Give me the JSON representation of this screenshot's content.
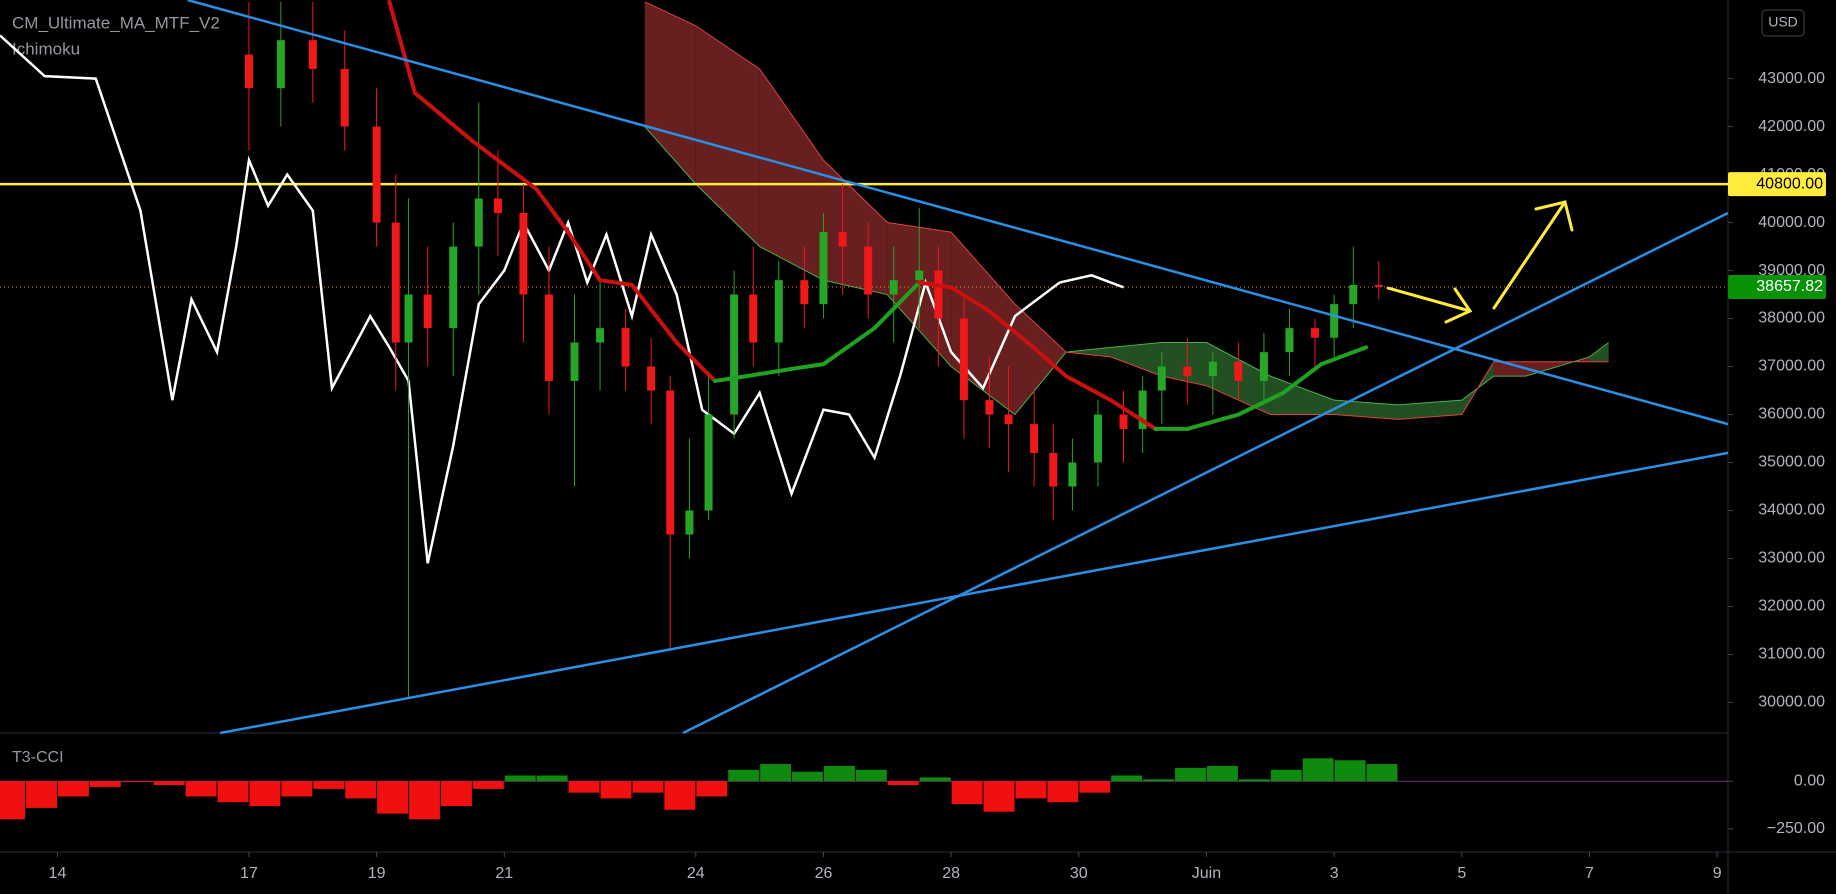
{
  "indicators": [
    "CM_Ultimate_MA_MTF_V2",
    "Ichimoku"
  ],
  "currency": "USD",
  "chart_data": [
    {
      "type": "candlestick",
      "up_color": "#26a526",
      "down_color": "#f01818",
      "x": [
        17.0,
        17.5,
        18.0,
        18.5,
        19.0,
        19.3,
        19.5,
        19.8,
        20.2,
        20.6,
        20.9,
        21.3,
        21.7,
        22.1,
        22.5,
        22.9,
        23.3,
        23.6,
        23.9,
        24.2,
        24.6,
        24.9,
        25.3,
        25.7,
        26.0,
        26.3,
        26.7,
        27.1,
        27.5,
        27.8,
        28.2,
        28.6,
        28.9,
        29.3,
        29.6,
        29.9,
        30.3,
        30.7,
        31.0,
        31.3,
        31.7,
        32.1,
        32.5,
        32.9,
        33.3,
        33.7,
        34.0,
        34.3,
        34.7
      ],
      "open": [
        43500,
        42800,
        43800,
        43200,
        42000,
        40000,
        37500,
        38500,
        37800,
        39500,
        40500,
        40200,
        38500,
        36700,
        37500,
        37800,
        37000,
        36500,
        33500,
        34000,
        36000,
        38500,
        37500,
        38800,
        38300,
        39800,
        39500,
        38500,
        38800,
        39000,
        38000,
        36300,
        36000,
        35800,
        35200,
        34500,
        35000,
        36000,
        35700,
        36500,
        37000,
        36800,
        37100,
        36700,
        37300,
        37800,
        37600,
        38300,
        38700
      ],
      "high": [
        44600,
        44600,
        44600,
        44000,
        42800,
        41000,
        40500,
        39500,
        40000,
        42500,
        41500,
        40800,
        39500,
        38500,
        38800,
        38200,
        37600,
        36800,
        35500,
        36800,
        39000,
        39500,
        39200,
        39500,
        40200,
        40800,
        40000,
        39500,
        40300,
        39500,
        38500,
        37200,
        37000,
        36500,
        35800,
        35500,
        36300,
        36500,
        36800,
        37300,
        37600,
        37300,
        37500,
        37700,
        38200,
        38000,
        38500,
        39500,
        39200
      ],
      "low": [
        41500,
        42000,
        42500,
        41500,
        39500,
        36500,
        30100,
        37000,
        36800,
        38500,
        39300,
        37500,
        36000,
        34500,
        36500,
        36500,
        35800,
        31100,
        33000,
        33800,
        35500,
        37000,
        36800,
        37800,
        38000,
        38500,
        38000,
        37500,
        37800,
        37000,
        35500,
        35300,
        34800,
        34500,
        33800,
        34000,
        34500,
        35000,
        35200,
        35800,
        36200,
        36000,
        36300,
        36300,
        36800,
        37000,
        37200,
        37800,
        38400
      ],
      "close": [
        42800,
        43800,
        43200,
        42000,
        40000,
        37500,
        38500,
        37800,
        39500,
        40500,
        40200,
        38500,
        36700,
        37500,
        37800,
        37000,
        36500,
        33500,
        34000,
        36000,
        38500,
        37500,
        38800,
        38300,
        39800,
        39500,
        38500,
        38800,
        39000,
        38000,
        36300,
        36000,
        35800,
        35200,
        34500,
        35000,
        36000,
        35700,
        36500,
        37000,
        36800,
        37100,
        36700,
        37300,
        37800,
        37600,
        38300,
        38700,
        38657.82
      ],
      "ylim": [
        29364,
        44637
      ],
      "yticks": [
        {
          "value": 30000,
          "label": "30000.00"
        },
        {
          "value": 31000,
          "label": "31000.00"
        },
        {
          "value": 32000,
          "label": "32000.00"
        },
        {
          "value": 33000,
          "label": "33000.00"
        },
        {
          "value": 34000,
          "label": "34000.00"
        },
        {
          "value": 35000,
          "label": "35000.00"
        },
        {
          "value": 36000,
          "label": "36000.00"
        },
        {
          "value": 37000,
          "label": "37000.00"
        },
        {
          "value": 38000,
          "label": "38000.00"
        },
        {
          "value": 39000,
          "label": "39000.00"
        },
        {
          "value": 40000,
          "label": "40000.00"
        },
        {
          "value": 41000,
          "label": "41000.00"
        },
        {
          "value": 42000,
          "label": "42000.00"
        },
        {
          "value": 43000,
          "label": "43000.00"
        }
      ],
      "xlim": [
        13.1,
        40.17
      ],
      "xticks": [
        14,
        17,
        19,
        21,
        24,
        26,
        28,
        30,
        {
          "value": 32,
          "label": "Juin"
        },
        {
          "value": 34,
          "label": "3"
        },
        {
          "value": 36,
          "label": "5"
        },
        {
          "value": 38,
          "label": "7"
        },
        {
          "value": 40,
          "label": "9"
        }
      ],
      "hline": {
        "value": 40800,
        "label": "40800.00",
        "color": "#ffeb3b"
      },
      "cloud": {
        "up_color": "#2e6b2e",
        "down_color": "#8a2a2a",
        "x": [
          23.2,
          24.0,
          25.0,
          26.0,
          27.0,
          28.0,
          29.0,
          29.8,
          30.5,
          31.3,
          32.0,
          33.0,
          34.0,
          35.0,
          36.0,
          36.5,
          37.0,
          38.0,
          38.3
        ],
        "span_a": [
          42000,
          40800,
          39500,
          38800,
          38500,
          37000,
          36000,
          37300,
          37400,
          37500,
          37500,
          36800,
          36300,
          36200,
          36300,
          36800,
          36800,
          37200,
          37500
        ],
        "span_b": [
          44600,
          44100,
          43200,
          41300,
          40000,
          39800,
          38300,
          37300,
          37200,
          36800,
          36600,
          36000,
          36000,
          35900,
          36000,
          37100,
          37100,
          37100,
          37100
        ]
      },
      "ma": {
        "up_color": "#1fa21f",
        "down_color": "#cc1010",
        "x": [
          19.2,
          19.6,
          20.5,
          21.5,
          22.0,
          22.5,
          23.0,
          23.7,
          24.3,
          24.8,
          25.5,
          26.0,
          26.8,
          27.5,
          28.0,
          28.6,
          29.2,
          29.8,
          30.5,
          31.2,
          31.7,
          32.5,
          33.2,
          33.8,
          34.5
        ],
        "values": [
          44600,
          42700,
          41700,
          40700,
          39800,
          38800,
          38700,
          37500,
          36700,
          36800,
          36950,
          37050,
          37800,
          38750,
          38650,
          38150,
          37500,
          36800,
          36300,
          35700,
          35700,
          36000,
          36450,
          37050,
          37400
        ]
      },
      "comparison": {
        "color": "#ffffff",
        "x": [
          13.1,
          13.8,
          14.6,
          15.3,
          15.8,
          16.1,
          16.5,
          16.8,
          17.0,
          17.3,
          17.6,
          18.0,
          18.3,
          18.6,
          18.9,
          19.2,
          19.5,
          19.8,
          20.2,
          20.6,
          21.0,
          21.3,
          21.7,
          22.0,
          22.3,
          22.6,
          23.0,
          23.3,
          23.7,
          24.1,
          24.6,
          25.0,
          25.5,
          26.0,
          26.4,
          26.8,
          27.2,
          27.6,
          28.0,
          28.5,
          29.0,
          29.7,
          30.2,
          30.7
        ],
        "values": [
          43900,
          43050,
          43000,
          40250,
          36300,
          38400,
          37300,
          39500,
          41300,
          40350,
          41000,
          40250,
          36550,
          37300,
          38050,
          37400,
          36700,
          32900,
          35350,
          38300,
          39000,
          40000,
          39000,
          40000,
          38750,
          39750,
          38050,
          39750,
          38500,
          36100,
          35600,
          36450,
          34350,
          36100,
          36000,
          35100,
          36800,
          38750,
          37300,
          36550,
          38050,
          38750,
          38900,
          38650
        ]
      },
      "trendlines": {
        "color": "#2a8fe6",
        "lines": [
          {
            "x": [
              16.04,
              40.17
            ],
            "values": [
              44637,
              35800
            ]
          },
          {
            "x": [
              16.55,
              40.17
            ],
            "values": [
              29364,
              35200
            ]
          },
          {
            "x": [
              23.8,
              40.17
            ],
            "values": [
              29364,
              40200
            ]
          }
        ]
      }
    },
    {
      "type": "bar",
      "title": "T3-CCI",
      "up_color": "#0e8a0e",
      "down_color": "#f01010",
      "x": [
        13.25,
        13.75,
        14.25,
        14.75,
        15.25,
        15.75,
        16.25,
        16.75,
        17.25,
        17.75,
        18.25,
        18.75,
        19.25,
        19.75,
        20.25,
        20.75,
        21.25,
        21.75,
        22.25,
        22.75,
        23.25,
        23.75,
        24.25,
        24.75,
        25.25,
        25.75,
        26.25,
        26.75,
        27.25,
        27.75,
        28.25,
        28.75,
        29.25,
        29.75,
        30.25,
        30.75,
        31.25,
        31.75,
        32.25,
        32.75,
        33.25,
        33.75,
        34.25,
        34.75
      ],
      "values": [
        -200,
        -140,
        -80,
        -30,
        -5,
        -20,
        -80,
        -110,
        -130,
        -80,
        -40,
        -90,
        -170,
        -200,
        -130,
        -40,
        30,
        30,
        -60,
        -90,
        -60,
        -150,
        -80,
        60,
        90,
        50,
        80,
        60,
        -20,
        20,
        -120,
        -160,
        -90,
        -110,
        -60,
        30,
        10,
        70,
        80,
        10,
        60,
        120,
        110,
        90
      ],
      "ylim": [
        -366,
        232
      ],
      "yticks": [
        {
          "value": 0,
          "label": "0.00"
        },
        {
          "value": -250,
          "label": "−250.00"
        }
      ]
    }
  ]
}
